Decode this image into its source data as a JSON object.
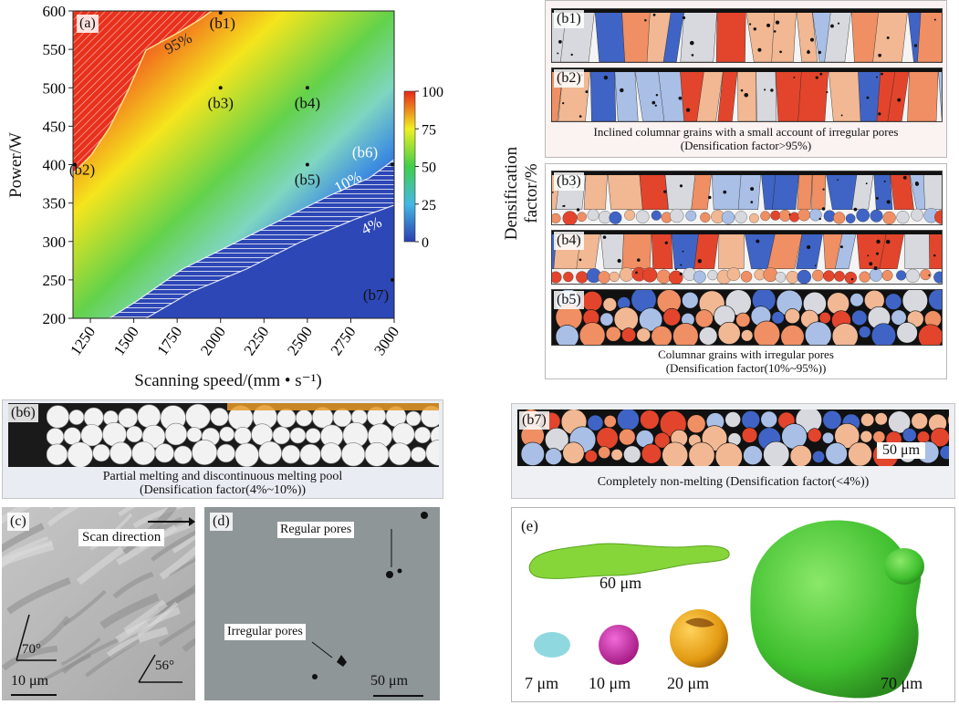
{
  "panel_a": {
    "label": "(a)",
    "chart_data": {
      "type": "heatmap",
      "x": [
        1250,
        1500,
        1750,
        2000,
        2250,
        2500,
        2750,
        3000
      ],
      "y": [
        200,
        250,
        300,
        350,
        400,
        450,
        500,
        550,
        600
      ],
      "xlim": [
        1150,
        3000
      ],
      "ylim": [
        200,
        600
      ],
      "xlabel": "Scanning speed/(mm • s⁻¹)",
      "ylabel": "Power/W",
      "colorbar": {
        "ticks": [
          0,
          25,
          50,
          75,
          100
        ],
        "label": "Densification factor/%",
        "colors": [
          "#2b3fb0",
          "#44c0e0",
          "#3fcf4a",
          "#f0f020",
          "#e8261a"
        ]
      },
      "contours": [
        {
          "label": "95%",
          "level": 95
        },
        {
          "label": "10%",
          "level": 10
        },
        {
          "label": "4%",
          "level": 4
        }
      ],
      "points": [
        {
          "name": "(b1)",
          "x": 2000,
          "y": 600
        },
        {
          "name": "(b2)",
          "x": 1150,
          "y": 400
        },
        {
          "name": "(b3)",
          "x": 2000,
          "y": 500
        },
        {
          "name": "(b4)",
          "x": 2500,
          "y": 500
        },
        {
          "name": "(b5)",
          "x": 2500,
          "y": 400
        },
        {
          "name": "(b6)",
          "x": 3000,
          "y": 400
        },
        {
          "name": "(b7)",
          "x": 3000,
          "y": 250
        }
      ]
    }
  },
  "colorbar_label": "Densification factor/%",
  "group_top": {
    "labels": [
      "(b1)",
      "(b2)"
    ],
    "caption_line1": "Inclined columnar grains with a small account of irregular pores",
    "caption_line2": "(Densification factor>95%)"
  },
  "group_mid": {
    "labels": [
      "(b3)",
      "(b4)",
      "(b5)"
    ],
    "caption_line1": "Columnar grains with irregular pores",
    "caption_line2": "(Densification factor(10%~95%))"
  },
  "panel_b6": {
    "label": "(b6)",
    "caption_line1": "Partial melting and discontinuous melting pool",
    "caption_line2": "(Densification factor(4%~10%))"
  },
  "panel_b7": {
    "label": "(b7)",
    "scale": "50 μm",
    "caption": "Completely non-melting (Densification factor(<4%))"
  },
  "panel_c": {
    "label": "(c)",
    "scan": "Scan direction",
    "angle1": "70°",
    "angle2": "56°",
    "scale": "10 μm"
  },
  "panel_d": {
    "label": "(d)",
    "regular": "Regular pores",
    "irregular": "Irregular pores",
    "scale": "50 μm"
  },
  "panel_e": {
    "label": "(e)",
    "s60": "60 μm",
    "s7": "7 μm",
    "s10": "10 μm",
    "s20": "20 μm",
    "s70": "70 μm"
  },
  "palette": {
    "red": "#e2452c",
    "orange": "#ef8f63",
    "peach": "#f1b893",
    "blue": "#3f64c5",
    "lightblue": "#a9bfe6",
    "grey": "#d7d9de"
  }
}
